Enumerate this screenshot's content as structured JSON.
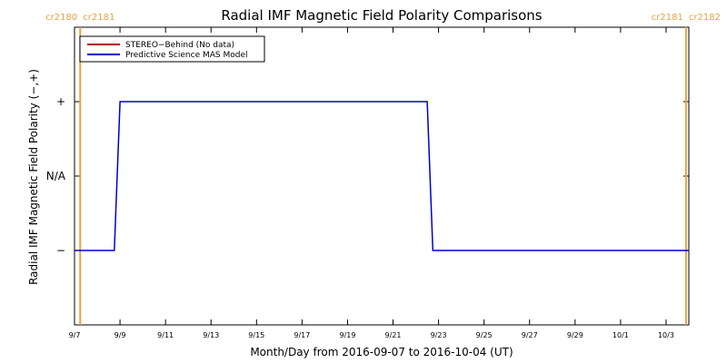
{
  "chart_data": {
    "type": "line",
    "title": "Radial IMF Magnetic Field Polarity Comparisons",
    "xlabel": "Month/Day from 2016-09-07 to 2016-10-04 (UT)",
    "ylabel": "Radial IMF Magnetic Field Polarity (−,+)",
    "x_range": [
      "2016-09-07",
      "2016-10-04"
    ],
    "x_ticks": [
      "9/7",
      "9/9",
      "9/11",
      "9/13",
      "9/15",
      "9/17",
      "9/19",
      "9/21",
      "9/23",
      "9/25",
      "9/27",
      "9/29",
      "10/1",
      "10/3"
    ],
    "y_ticks": [
      "−",
      "N/A",
      "+"
    ],
    "y_values_map": {
      "−": -1,
      "N/A": 0,
      "+": 1
    },
    "ylim": [
      -2,
      2
    ],
    "legend_placement": "top-left",
    "series": [
      {
        "name": "STEREO−Behind (No data)",
        "color": "#b30000",
        "x": [],
        "y": []
      },
      {
        "name": "Predictive Science MAS Model",
        "color": "#0000cc",
        "x": [
          "2016-09-07T00:00",
          "2016-09-08T18:00",
          "2016-09-09T00:00",
          "2016-09-22T12:00",
          "2016-09-22T18:00",
          "2016-10-04T00:00"
        ],
        "y": [
          -1,
          -1,
          1,
          1,
          -1,
          -1
        ]
      }
    ],
    "carrington_markers": [
      {
        "date": "2016-09-07T06:00",
        "left_label": "cr2180",
        "right_label": "cr2181"
      },
      {
        "date": "2016-10-03T21:00",
        "left_label": "cr2181",
        "right_label": "cr2182"
      }
    ],
    "marker_color": "#e8a33d"
  }
}
